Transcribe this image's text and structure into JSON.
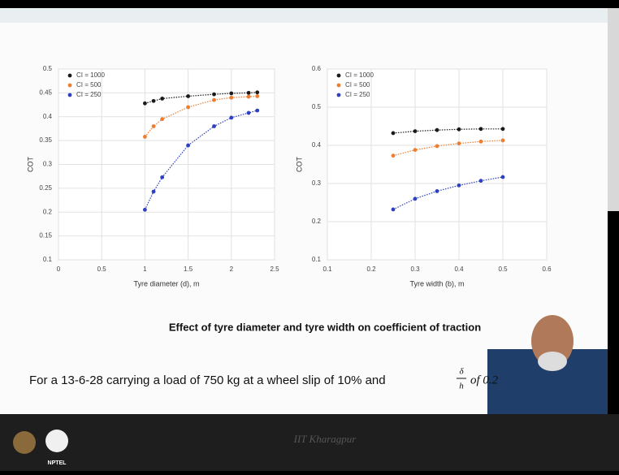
{
  "chart_data": [
    {
      "type": "scatter",
      "x_label": "Tyre diameter (d), m",
      "y_label": "COT",
      "x": [
        1,
        1.1,
        1.2,
        1.5,
        1.8,
        2,
        2.2,
        2.3
      ],
      "series": [
        {
          "name": "CI = 1000",
          "color": "#1a1a1a",
          "values": [
            0.428,
            0.433,
            0.438,
            0.443,
            0.447,
            0.449,
            0.45,
            0.451
          ]
        },
        {
          "name": "CI = 500",
          "color": "#ed7d31",
          "values": [
            0.358,
            0.38,
            0.395,
            0.42,
            0.435,
            0.44,
            0.442,
            0.443
          ]
        },
        {
          "name": "CI = 250",
          "color": "#2e3fc0",
          "values": [
            0.205,
            0.243,
            0.273,
            0.34,
            0.38,
            0.398,
            0.408,
            0.413
          ]
        }
      ],
      "xlim": [
        0,
        2.5
      ],
      "xticks": [
        0,
        0.5,
        1,
        1.5,
        2,
        2.5
      ],
      "ylim": [
        0.1,
        0.5
      ],
      "yticks": [
        0.1,
        0.15,
        0.2,
        0.25,
        0.3,
        0.35,
        0.4,
        0.45,
        0.5
      ],
      "grid": true,
      "legend": "top-left"
    },
    {
      "type": "scatter",
      "x_label": "Tyre width (b), m",
      "y_label": "COT",
      "x": [
        0.25,
        0.3,
        0.35,
        0.4,
        0.45,
        0.5
      ],
      "series": [
        {
          "name": "CI = 1000",
          "color": "#1a1a1a",
          "values": [
            0.432,
            0.437,
            0.44,
            0.442,
            0.443,
            0.443
          ]
        },
        {
          "name": "CI = 500",
          "color": "#ed7d31",
          "values": [
            0.373,
            0.388,
            0.398,
            0.405,
            0.41,
            0.413
          ]
        },
        {
          "name": "CI = 250",
          "color": "#2e3fc0",
          "values": [
            0.232,
            0.26,
            0.28,
            0.295,
            0.307,
            0.317
          ]
        }
      ],
      "xlim": [
        0.1,
        0.6
      ],
      "xticks": [
        0.1,
        0.2,
        0.3,
        0.4,
        0.5,
        0.6
      ],
      "ylim": [
        0.1,
        0.6
      ],
      "yticks": [
        0.1,
        0.2,
        0.3,
        0.4,
        0.5,
        0.6
      ],
      "grid": true,
      "legend": "top-left"
    }
  ],
  "slide": {
    "caption": "Effect of tyre diameter and tyre width on coefficient of traction",
    "note": {
      "text": "For a 13-6-28 carrying a load of 750 kg at a wheel slip of 10% and",
      "numerator": "δ",
      "denominator": "h",
      "tail": "of 0.2"
    }
  },
  "footer": {
    "institute": "IIT Kharagpur",
    "logo": "NPTEL"
  }
}
